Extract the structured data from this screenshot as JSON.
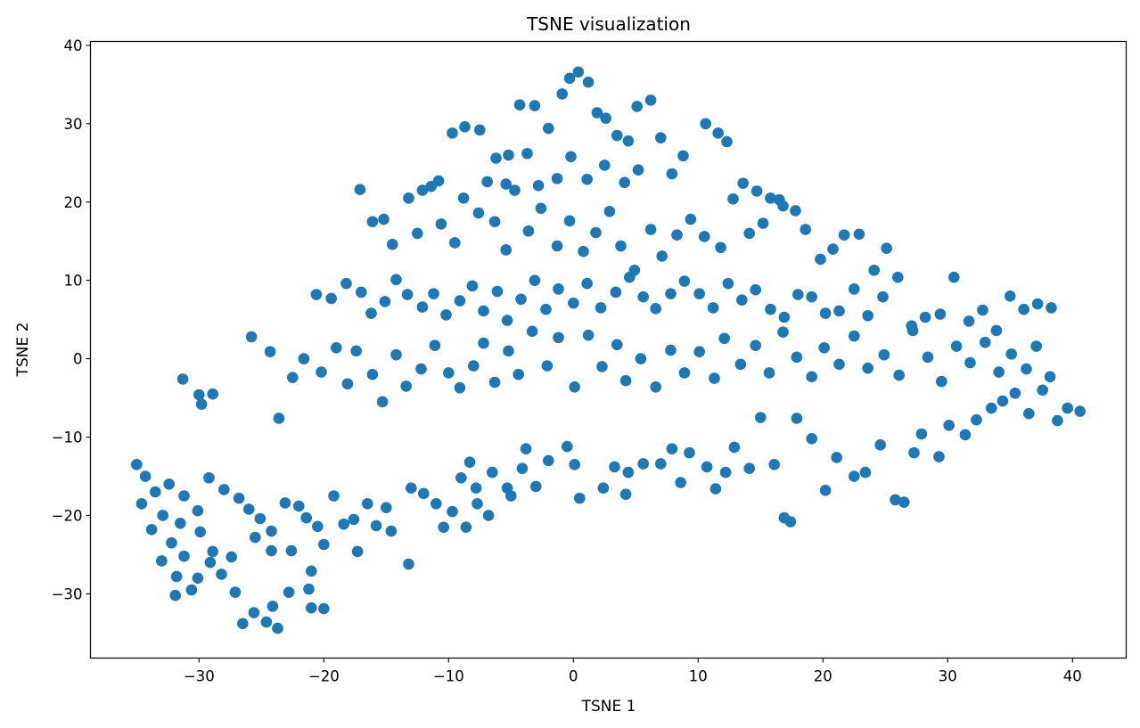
{
  "chart_data": {
    "type": "scatter",
    "title": "TSNE visualization",
    "xlabel": "TSNE 1",
    "ylabel": "TSNE 2",
    "xlim": [
      -38.7,
      44.3
    ],
    "ylim": [
      -38.2,
      40.5
    ],
    "xticks": [
      -30,
      -20,
      -10,
      0,
      10,
      20,
      30,
      40
    ],
    "xtick_labels": [
      "−30",
      "−20",
      "−10",
      "0",
      "10",
      "20",
      "30",
      "40"
    ],
    "yticks": [
      -30,
      -20,
      -10,
      0,
      10,
      20,
      30,
      40
    ],
    "ytick_labels": [
      "−30",
      "−20",
      "−10",
      "0",
      "10",
      "20",
      "30",
      "40"
    ],
    "grid": false,
    "color": "#1f77b4",
    "series": [
      {
        "points": [
          [
            -35,
            -13.5
          ],
          [
            -34.3,
            -15
          ],
          [
            -33.5,
            -17
          ],
          [
            -34.6,
            -18.5
          ],
          [
            -32.9,
            -20
          ],
          [
            -33.8,
            -21.8
          ],
          [
            -32.2,
            -23.5
          ],
          [
            -31.2,
            -25.2
          ],
          [
            -33,
            -25.8
          ],
          [
            -31.8,
            -27.8
          ],
          [
            -30.6,
            -29.5
          ],
          [
            -31.9,
            -30.2
          ],
          [
            -30.1,
            -28
          ],
          [
            -29.1,
            -26
          ],
          [
            -28.2,
            -27.5
          ],
          [
            -27.1,
            -29.8
          ],
          [
            -26.5,
            -33.8
          ],
          [
            -25.6,
            -32.4
          ],
          [
            -24.6,
            -33.6
          ],
          [
            -23.7,
            -34.4
          ],
          [
            -24.1,
            -31.6
          ],
          [
            -22.8,
            -29.8
          ],
          [
            -21,
            -31.8
          ],
          [
            -20,
            -31.9
          ],
          [
            -21.2,
            -29.4
          ],
          [
            -21,
            -27.1
          ],
          [
            -22.6,
            -24.5
          ],
          [
            -24.2,
            -24.5
          ],
          [
            -25.5,
            -22.8
          ],
          [
            -27.4,
            -25.3
          ],
          [
            -28.9,
            -24.6
          ],
          [
            -29.9,
            -22.1
          ],
          [
            -31.5,
            -21
          ],
          [
            -30.1,
            -19.4
          ],
          [
            -31.2,
            -17.5
          ],
          [
            -32.4,
            -16
          ],
          [
            -29.2,
            -15.2
          ],
          [
            -28,
            -16.7
          ],
          [
            -26.8,
            -17.8
          ],
          [
            -26,
            -19.2
          ],
          [
            -25.1,
            -20.4
          ],
          [
            -24.2,
            -22
          ],
          [
            -23.1,
            -18.4
          ],
          [
            -22,
            -18.8
          ],
          [
            -21.4,
            -20.3
          ],
          [
            -20.5,
            -21.4
          ],
          [
            -20,
            -23.7
          ],
          [
            -19.2,
            -17.5
          ],
          [
            -18.4,
            -21.1
          ],
          [
            -17.6,
            -20.5
          ],
          [
            -17.3,
            -24.6
          ],
          [
            -16.5,
            -18.5
          ],
          [
            -15.8,
            -21.3
          ],
          [
            -14.6,
            -22
          ],
          [
            -15,
            -19
          ],
          [
            -13.2,
            -26.2
          ],
          [
            -13,
            -16.5
          ],
          [
            -12,
            -17.2
          ],
          [
            -11,
            -18.5
          ],
          [
            -9.7,
            -19.5
          ],
          [
            -10.4,
            -21.5
          ],
          [
            -8.6,
            -21.5
          ],
          [
            -7.7,
            -18.5
          ],
          [
            -6.8,
            -20
          ],
          [
            -7.8,
            -16.5
          ],
          [
            -9,
            -15.2
          ],
          [
            -8.3,
            -13.2
          ],
          [
            -6.5,
            -14.5
          ],
          [
            -5.3,
            -16.5
          ],
          [
            -5,
            -17.5
          ],
          [
            -4.1,
            -14
          ],
          [
            -3,
            -16.3
          ],
          [
            -3.8,
            -11.5
          ],
          [
            -2,
            -13
          ],
          [
            -0.5,
            -11.2
          ],
          [
            0.1,
            -13.5
          ],
          [
            0.5,
            -17.8
          ],
          [
            2.4,
            -16.5
          ],
          [
            3.3,
            -13.8
          ],
          [
            4.4,
            -14.5
          ],
          [
            4.2,
            -17.3
          ],
          [
            5.6,
            -13.4
          ],
          [
            7,
            -13.4
          ],
          [
            7.9,
            -11.5
          ],
          [
            8.6,
            -15.8
          ],
          [
            9.3,
            -12
          ],
          [
            10.7,
            -13.8
          ],
          [
            11.4,
            -16.6
          ],
          [
            12.2,
            -14.5
          ],
          [
            12.9,
            -11.3
          ],
          [
            14.1,
            -14
          ],
          [
            15,
            -7.5
          ],
          [
            16.1,
            -13.5
          ],
          [
            16.9,
            -20.3
          ],
          [
            17.4,
            -20.8
          ],
          [
            17.9,
            -7.6
          ],
          [
            19.1,
            -10.2
          ],
          [
            20.2,
            -16.8
          ],
          [
            21.1,
            -12.6
          ],
          [
            22.5,
            -15
          ],
          [
            23.4,
            -14.5
          ],
          [
            24.6,
            -11
          ],
          [
            25.8,
            -18
          ],
          [
            26.5,
            -18.3
          ],
          [
            27.3,
            -12
          ],
          [
            27.9,
            -9.6
          ],
          [
            29.3,
            -12.5
          ],
          [
            30.1,
            -8.5
          ],
          [
            31.4,
            -9.7
          ],
          [
            32.3,
            -7.8
          ],
          [
            33.5,
            -6.3
          ],
          [
            34.4,
            -5.4
          ],
          [
            35.4,
            -4.4
          ],
          [
            36.5,
            -7
          ],
          [
            37.6,
            -4
          ],
          [
            38.8,
            -7.9
          ],
          [
            39.6,
            -6.3
          ],
          [
            40.6,
            -6.7
          ],
          [
            -31.3,
            -2.6
          ],
          [
            -30,
            -4.6
          ],
          [
            -28.9,
            -4.5
          ],
          [
            -29.8,
            -5.8
          ],
          [
            -25.8,
            2.8
          ],
          [
            -24.3,
            0.9
          ],
          [
            -23.6,
            -7.6
          ],
          [
            -22.5,
            -2.4
          ],
          [
            -21.6,
            0
          ],
          [
            -20.2,
            -1.7
          ],
          [
            -19,
            1.4
          ],
          [
            -18.1,
            -3.2
          ],
          [
            -17.4,
            1
          ],
          [
            -16.1,
            -2
          ],
          [
            -15.3,
            -5.5
          ],
          [
            -14.2,
            0.5
          ],
          [
            -13.4,
            -3.5
          ],
          [
            -12.2,
            -1.3
          ],
          [
            -11.1,
            1.7
          ],
          [
            -10,
            -1.8
          ],
          [
            -9.1,
            -3.7
          ],
          [
            -8,
            -0.9
          ],
          [
            -7.2,
            2
          ],
          [
            -6.3,
            -3
          ],
          [
            -5.2,
            1
          ],
          [
            -4.4,
            -2
          ],
          [
            -3.3,
            3.5
          ],
          [
            -2.1,
            -0.9
          ],
          [
            -1.2,
            2.7
          ],
          [
            0.1,
            -3.6
          ],
          [
            1.2,
            3
          ],
          [
            2.3,
            -1
          ],
          [
            3.5,
            1.8
          ],
          [
            4.2,
            -2.8
          ],
          [
            5.4,
            0
          ],
          [
            6.6,
            -3.6
          ],
          [
            7.8,
            1.1
          ],
          [
            8.9,
            -1.8
          ],
          [
            10.1,
            0.9
          ],
          [
            11.3,
            -2.5
          ],
          [
            12.1,
            2.6
          ],
          [
            13.4,
            -0.7
          ],
          [
            14.6,
            1.7
          ],
          [
            15.7,
            -1.8
          ],
          [
            16.8,
            3.4
          ],
          [
            17.9,
            0.2
          ],
          [
            19.1,
            -2.3
          ],
          [
            20.1,
            1.4
          ],
          [
            21.3,
            -0.7
          ],
          [
            22.5,
            2.9
          ],
          [
            23.6,
            -1.2
          ],
          [
            24.9,
            0.5
          ],
          [
            26.1,
            -2.1
          ],
          [
            27.2,
            3.6
          ],
          [
            28.4,
            0.2
          ],
          [
            29.5,
            -2.9
          ],
          [
            30.7,
            1.6
          ],
          [
            31.8,
            -0.5
          ],
          [
            33,
            2.1
          ],
          [
            34.1,
            -1.7
          ],
          [
            35.1,
            0.6
          ],
          [
            36.3,
            -1.3
          ],
          [
            37.1,
            1.6
          ],
          [
            38.2,
            -2.3
          ],
          [
            -20.6,
            8.2
          ],
          [
            -19.4,
            7.7
          ],
          [
            -18.2,
            9.6
          ],
          [
            -17,
            8.5
          ],
          [
            -16.2,
            5.8
          ],
          [
            -15.1,
            7.3
          ],
          [
            -14.2,
            10.1
          ],
          [
            -13.3,
            8.2
          ],
          [
            -12.1,
            6.6
          ],
          [
            -11.2,
            8.3
          ],
          [
            -10.2,
            5.6
          ],
          [
            -9.1,
            7.4
          ],
          [
            -8.1,
            9.3
          ],
          [
            -7.2,
            6.1
          ],
          [
            -6.1,
            8.6
          ],
          [
            -5.3,
            4.9
          ],
          [
            -4.2,
            7.6
          ],
          [
            -3.1,
            10
          ],
          [
            -2.2,
            6.3
          ],
          [
            -1.2,
            8.9
          ],
          [
            0,
            7.1
          ],
          [
            1.1,
            9.6
          ],
          [
            2.2,
            6.5
          ],
          [
            3.4,
            8.5
          ],
          [
            4.5,
            10.4
          ],
          [
            5.6,
            7.9
          ],
          [
            6.6,
            6.4
          ],
          [
            7.8,
            8.3
          ],
          [
            8.9,
            9.9
          ],
          [
            10.1,
            8.3
          ],
          [
            11.2,
            6.5
          ],
          [
            12.4,
            9.6
          ],
          [
            13.5,
            7.5
          ],
          [
            14.6,
            8.8
          ],
          [
            15.8,
            6.3
          ],
          [
            16.9,
            5.3
          ],
          [
            18,
            8.2
          ],
          [
            19.1,
            7.9
          ],
          [
            20.2,
            5.8
          ],
          [
            21.3,
            6.1
          ],
          [
            22.5,
            8.9
          ],
          [
            23.6,
            5.5
          ],
          [
            24.8,
            7.9
          ],
          [
            26,
            10.4
          ],
          [
            27.1,
            4.2
          ],
          [
            28.2,
            5.3
          ],
          [
            29.4,
            5.7
          ],
          [
            30.5,
            10.4
          ],
          [
            31.7,
            4.8
          ],
          [
            32.8,
            6.2
          ],
          [
            33.9,
            3.6
          ],
          [
            35,
            8
          ],
          [
            36.1,
            6.3
          ],
          [
            37.2,
            7
          ],
          [
            38.3,
            6.5
          ],
          [
            -17.1,
            21.6
          ],
          [
            -16.1,
            17.5
          ],
          [
            -15.2,
            17.8
          ],
          [
            -14.5,
            14.6
          ],
          [
            -13.2,
            20.5
          ],
          [
            -12.5,
            16
          ],
          [
            -11.4,
            22
          ],
          [
            -10.6,
            17.2
          ],
          [
            -9.5,
            14.8
          ],
          [
            -8.8,
            20.5
          ],
          [
            -7.6,
            18.6
          ],
          [
            -6.3,
            17.5
          ],
          [
            -5.4,
            13.9
          ],
          [
            -4.7,
            21.5
          ],
          [
            -3.6,
            16.3
          ],
          [
            -2.6,
            19.2
          ],
          [
            -1.3,
            14.4
          ],
          [
            -0.3,
            17.6
          ],
          [
            0.8,
            13.7
          ],
          [
            1.8,
            16.1
          ],
          [
            2.9,
            18.8
          ],
          [
            3.8,
            14.4
          ],
          [
            4.9,
            11.3
          ],
          [
            6.2,
            16.5
          ],
          [
            7.1,
            13.1
          ],
          [
            8.3,
            15.8
          ],
          [
            9.4,
            17.8
          ],
          [
            10.5,
            15.6
          ],
          [
            11.8,
            14.2
          ],
          [
            12.8,
            20.4
          ],
          [
            14.1,
            16
          ],
          [
            15.2,
            17.3
          ],
          [
            16.5,
            20.3
          ],
          [
            17.8,
            18.9
          ],
          [
            18.6,
            16.5
          ],
          [
            19.8,
            12.7
          ],
          [
            20.8,
            14
          ],
          [
            21.7,
            15.8
          ],
          [
            22.9,
            15.9
          ],
          [
            24.1,
            11.3
          ],
          [
            25.1,
            14.1
          ],
          [
            -9.7,
            28.8
          ],
          [
            -8.7,
            29.6
          ],
          [
            -7.5,
            29.2
          ],
          [
            -6.2,
            25.6
          ],
          [
            -5.2,
            26
          ],
          [
            -4.3,
            32.4
          ],
          [
            -3.1,
            32.3
          ],
          [
            -2,
            29.4
          ],
          [
            -0.9,
            33.8
          ],
          [
            -0.3,
            35.8
          ],
          [
            0.4,
            36.6
          ],
          [
            1.2,
            35.3
          ],
          [
            1.9,
            31.4
          ],
          [
            2.6,
            30.7
          ],
          [
            3.5,
            28.5
          ],
          [
            4.4,
            27.8
          ],
          [
            5.1,
            32.2
          ],
          [
            6.2,
            33
          ],
          [
            7,
            28.2
          ],
          [
            7.9,
            23.6
          ],
          [
            8.8,
            25.9
          ],
          [
            10.6,
            30
          ],
          [
            11.6,
            28.8
          ],
          [
            12.3,
            27.7
          ],
          [
            13.6,
            22.4
          ],
          [
            14.7,
            21.4
          ],
          [
            15.8,
            20.5
          ],
          [
            16.8,
            19.5
          ],
          [
            -0.2,
            25.8
          ],
          [
            1.1,
            22.9
          ],
          [
            2.5,
            24.7
          ],
          [
            4.1,
            22.5
          ],
          [
            5.2,
            24.1
          ],
          [
            -1.3,
            23
          ],
          [
            -2.8,
            22.1
          ],
          [
            -3.7,
            26.2
          ],
          [
            -5.4,
            22.3
          ],
          [
            -6.9,
            22.6
          ],
          [
            -10.8,
            22.7
          ],
          [
            -12.1,
            21.5
          ]
        ]
      }
    ]
  }
}
